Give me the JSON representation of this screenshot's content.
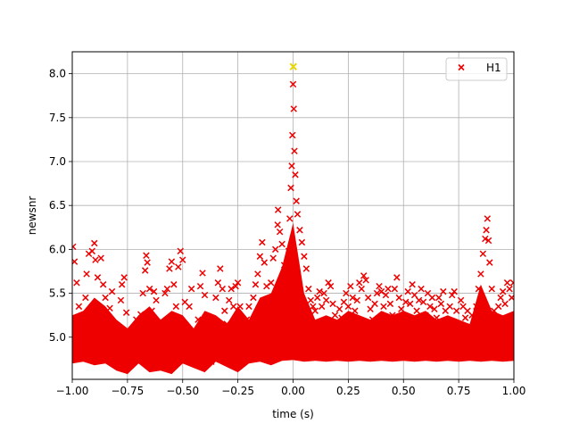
{
  "chart_data": {
    "type": "scatter",
    "title": "",
    "xlabel": "time (s)",
    "ylabel": "newsnr",
    "xlim": [
      -1.0,
      1.0
    ],
    "ylim": [
      4.52,
      8.25
    ],
    "xticks": [
      -1.0,
      -0.75,
      -0.5,
      -0.25,
      0.0,
      0.25,
      0.5,
      0.75,
      1.0
    ],
    "xtick_labels": [
      "−1.00",
      "−0.75",
      "−0.50",
      "−0.25",
      "0.00",
      "0.25",
      "0.50",
      "0.75",
      "1.00"
    ],
    "yticks": [
      5.0,
      5.5,
      6.0,
      6.5,
      7.0,
      7.5,
      8.0
    ],
    "ytick_labels": [
      "5.0",
      "5.5",
      "6.0",
      "6.5",
      "7.0",
      "7.5",
      "8.0"
    ],
    "grid": true,
    "legend_position": "top-right",
    "series": [
      {
        "name": "H1",
        "color": "#ee0000",
        "marker": "x",
        "points": [
          [
            -0.997,
            6.03
          ],
          [
            -0.99,
            5.86
          ],
          [
            -0.98,
            5.62
          ],
          [
            -0.97,
            5.35
          ],
          [
            -0.96,
            5.12
          ],
          [
            -0.95,
            4.9
          ],
          [
            -0.94,
            5.45
          ],
          [
            -0.935,
            5.72
          ],
          [
            -0.925,
            5.95
          ],
          [
            -0.91,
            5.98
          ],
          [
            -0.9,
            6.07
          ],
          [
            -0.895,
            5.88
          ],
          [
            -0.885,
            5.68
          ],
          [
            -0.87,
            5.9
          ],
          [
            -0.86,
            5.6
          ],
          [
            -0.85,
            5.45
          ],
          [
            -0.84,
            5.22
          ],
          [
            -0.83,
            5.33
          ],
          [
            -0.82,
            5.52
          ],
          [
            -0.81,
            5.05
          ],
          [
            -0.8,
            4.8
          ],
          [
            -0.79,
            5.1
          ],
          [
            -0.78,
            5.42
          ],
          [
            -0.775,
            5.6
          ],
          [
            -0.765,
            5.68
          ],
          [
            -0.755,
            5.28
          ],
          [
            -0.745,
            4.97
          ],
          [
            -0.735,
            4.76
          ],
          [
            -0.725,
            5.05
          ],
          [
            -0.71,
            5.2
          ],
          [
            -0.7,
            5.02
          ],
          [
            -0.69,
            5.26
          ],
          [
            -0.68,
            5.5
          ],
          [
            -0.67,
            5.76
          ],
          [
            -0.665,
            5.93
          ],
          [
            -0.66,
            5.85
          ],
          [
            -0.65,
            5.55
          ],
          [
            -0.64,
            5.3
          ],
          [
            -0.63,
            5.52
          ],
          [
            -0.62,
            5.42
          ],
          [
            -0.61,
            5.15
          ],
          [
            -0.6,
            4.9
          ],
          [
            -0.59,
            5.12
          ],
          [
            -0.58,
            5.5
          ],
          [
            -0.57,
            5.55
          ],
          [
            -0.56,
            5.78
          ],
          [
            -0.55,
            5.86
          ],
          [
            -0.54,
            5.6
          ],
          [
            -0.53,
            5.35
          ],
          [
            -0.52,
            5.8
          ],
          [
            -0.51,
            5.98
          ],
          [
            -0.5,
            5.88
          ],
          [
            -0.49,
            5.4
          ],
          [
            -0.48,
            5.05
          ],
          [
            -0.47,
            5.35
          ],
          [
            -0.46,
            5.55
          ],
          [
            -0.45,
            5.05
          ],
          [
            -0.44,
            4.8
          ],
          [
            -0.43,
            5.2
          ],
          [
            -0.42,
            5.58
          ],
          [
            -0.41,
            5.73
          ],
          [
            -0.4,
            5.48
          ],
          [
            -0.39,
            5.22
          ],
          [
            -0.38,
            4.95
          ],
          [
            -0.37,
            4.72
          ],
          [
            -0.36,
            5.1
          ],
          [
            -0.35,
            5.45
          ],
          [
            -0.34,
            5.62
          ],
          [
            -0.33,
            5.78
          ],
          [
            -0.32,
            5.55
          ],
          [
            -0.31,
            5.3
          ],
          [
            -0.3,
            5.15
          ],
          [
            -0.29,
            5.42
          ],
          [
            -0.28,
            5.55
          ],
          [
            -0.27,
            5.35
          ],
          [
            -0.26,
            5.58
          ],
          [
            -0.25,
            5.62
          ],
          [
            -0.24,
            5.35
          ],
          [
            -0.23,
            5.1
          ],
          [
            -0.22,
            4.9
          ],
          [
            -0.21,
            5.2
          ],
          [
            -0.2,
            5.35
          ],
          [
            -0.19,
            5.15
          ],
          [
            -0.18,
            5.45
          ],
          [
            -0.17,
            5.6
          ],
          [
            -0.16,
            5.72
          ],
          [
            -0.15,
            5.92
          ],
          [
            -0.14,
            6.08
          ],
          [
            -0.13,
            5.85
          ],
          [
            -0.12,
            5.58
          ],
          [
            -0.11,
            5.3
          ],
          [
            -0.1,
            5.62
          ],
          [
            -0.09,
            5.9
          ],
          [
            -0.08,
            6.0
          ],
          [
            -0.07,
            6.28
          ],
          [
            -0.068,
            6.45
          ],
          [
            -0.06,
            6.2
          ],
          [
            -0.05,
            6.06
          ],
          [
            -0.04,
            5.82
          ],
          [
            -0.03,
            5.55
          ],
          [
            -0.02,
            5.98
          ],
          [
            -0.015,
            6.35
          ],
          [
            -0.01,
            6.7
          ],
          [
            -0.006,
            6.95
          ],
          [
            -0.003,
            7.3
          ],
          [
            0.0,
            7.88
          ],
          [
            0.001,
            8.08
          ],
          [
            0.003,
            7.6
          ],
          [
            0.006,
            7.12
          ],
          [
            0.01,
            6.85
          ],
          [
            0.015,
            6.55
          ],
          [
            0.02,
            6.4
          ],
          [
            0.03,
            6.22
          ],
          [
            0.04,
            6.08
          ],
          [
            0.05,
            5.92
          ],
          [
            0.06,
            5.78
          ],
          [
            0.07,
            5.55
          ],
          [
            0.08,
            5.42
          ],
          [
            0.09,
            5.35
          ],
          [
            0.1,
            5.3
          ],
          [
            0.11,
            5.45
          ],
          [
            0.12,
            5.52
          ],
          [
            0.13,
            5.35
          ],
          [
            0.14,
            5.5
          ],
          [
            0.15,
            5.42
          ],
          [
            0.16,
            5.62
          ],
          [
            0.17,
            5.58
          ],
          [
            0.18,
            5.38
          ],
          [
            0.19,
            5.25
          ],
          [
            0.2,
            5.15
          ],
          [
            0.21,
            5.32
          ],
          [
            0.22,
            5.22
          ],
          [
            0.23,
            5.4
          ],
          [
            0.24,
            5.5
          ],
          [
            0.25,
            5.35
          ],
          [
            0.26,
            5.58
          ],
          [
            0.27,
            5.45
          ],
          [
            0.28,
            5.3
          ],
          [
            0.29,
            5.42
          ],
          [
            0.3,
            5.62
          ],
          [
            0.31,
            5.55
          ],
          [
            0.32,
            5.7
          ],
          [
            0.33,
            5.65
          ],
          [
            0.34,
            5.45
          ],
          [
            0.35,
            5.32
          ],
          [
            0.36,
            5.2
          ],
          [
            0.37,
            5.38
          ],
          [
            0.38,
            5.5
          ],
          [
            0.39,
            5.58
          ],
          [
            0.4,
            5.52
          ],
          [
            0.41,
            5.35
          ],
          [
            0.42,
            5.48
          ],
          [
            0.43,
            5.55
          ],
          [
            0.44,
            5.38
          ],
          [
            0.45,
            5.25
          ],
          [
            0.46,
            5.55
          ],
          [
            0.47,
            5.68
          ],
          [
            0.48,
            5.45
          ],
          [
            0.49,
            5.32
          ],
          [
            0.5,
            5.2
          ],
          [
            0.51,
            5.4
          ],
          [
            0.52,
            5.52
          ],
          [
            0.53,
            5.38
          ],
          [
            0.54,
            5.6
          ],
          [
            0.55,
            5.48
          ],
          [
            0.56,
            5.3
          ],
          [
            0.57,
            5.42
          ],
          [
            0.58,
            5.55
          ],
          [
            0.59,
            5.4
          ],
          [
            0.6,
            5.25
          ],
          [
            0.61,
            5.5
          ],
          [
            0.62,
            5.35
          ],
          [
            0.63,
            5.45
          ],
          [
            0.64,
            5.32
          ],
          [
            0.65,
            5.22
          ],
          [
            0.66,
            5.45
          ],
          [
            0.67,
            5.38
          ],
          [
            0.68,
            5.52
          ],
          [
            0.69,
            5.3
          ],
          [
            0.7,
            5.18
          ],
          [
            0.71,
            5.35
          ],
          [
            0.72,
            5.48
          ],
          [
            0.73,
            5.52
          ],
          [
            0.74,
            5.3
          ],
          [
            0.75,
            5.15
          ],
          [
            0.76,
            5.42
          ],
          [
            0.77,
            5.35
          ],
          [
            0.78,
            5.22
          ],
          [
            0.79,
            5.3
          ],
          [
            0.8,
            5.12
          ],
          [
            0.81,
            5.25
          ],
          [
            0.82,
            5.15
          ],
          [
            0.83,
            5.35
          ],
          [
            0.84,
            5.55
          ],
          [
            0.85,
            5.72
          ],
          [
            0.86,
            5.95
          ],
          [
            0.87,
            6.12
          ],
          [
            0.875,
            6.22
          ],
          [
            0.88,
            6.35
          ],
          [
            0.885,
            6.1
          ],
          [
            0.89,
            5.85
          ],
          [
            0.9,
            5.55
          ],
          [
            0.91,
            5.3
          ],
          [
            0.92,
            5.1
          ],
          [
            0.93,
            5.35
          ],
          [
            0.94,
            5.45
          ],
          [
            0.95,
            5.52
          ],
          [
            0.96,
            5.38
          ],
          [
            0.97,
            5.62
          ],
          [
            0.98,
            5.55
          ],
          [
            0.99,
            5.45
          ],
          [
            0.998,
            5.62
          ]
        ],
        "band": {
          "x": [
            -1.0,
            -0.95,
            -0.9,
            -0.85,
            -0.8,
            -0.75,
            -0.7,
            -0.65,
            -0.6,
            -0.55,
            -0.5,
            -0.45,
            -0.4,
            -0.35,
            -0.3,
            -0.25,
            -0.2,
            -0.15,
            -0.1,
            -0.05,
            0.0,
            0.05,
            0.1,
            0.15,
            0.2,
            0.25,
            0.3,
            0.35,
            0.4,
            0.45,
            0.5,
            0.55,
            0.6,
            0.65,
            0.7,
            0.75,
            0.8,
            0.85,
            0.9,
            0.95,
            1.0
          ],
          "low": [
            4.7,
            4.72,
            4.68,
            4.7,
            4.62,
            4.58,
            4.7,
            4.6,
            4.62,
            4.58,
            4.7,
            4.65,
            4.6,
            4.72,
            4.66,
            4.6,
            4.7,
            4.72,
            4.68,
            4.73,
            4.74,
            4.72,
            4.73,
            4.72,
            4.73,
            4.72,
            4.73,
            4.72,
            4.73,
            4.72,
            4.73,
            4.72,
            4.73,
            4.72,
            4.73,
            4.72,
            4.73,
            4.72,
            4.73,
            4.72,
            4.73
          ],
          "high": [
            5.25,
            5.3,
            5.45,
            5.35,
            5.2,
            5.1,
            5.25,
            5.35,
            5.2,
            5.3,
            5.25,
            5.1,
            5.3,
            5.25,
            5.15,
            5.35,
            5.2,
            5.45,
            5.5,
            5.8,
            6.3,
            5.5,
            5.2,
            5.25,
            5.2,
            5.3,
            5.25,
            5.2,
            5.3,
            5.25,
            5.3,
            5.25,
            5.3,
            5.2,
            5.25,
            5.2,
            5.15,
            5.6,
            5.3,
            5.25,
            5.3
          ]
        }
      }
    ],
    "highlight": {
      "x": 0.001,
      "y": 8.08,
      "color": "#e8d800"
    }
  }
}
